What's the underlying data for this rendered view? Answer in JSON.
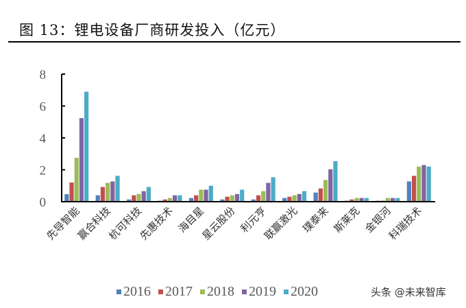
{
  "header": {
    "title": "图 13：锂电设备厂商研发投入（亿元）"
  },
  "watermark": "头条 @未来智库",
  "chart_data": {
    "type": "bar",
    "title": "锂电设备厂商研发投入（亿元）",
    "xlabel": "",
    "ylabel": "亿元",
    "ylim": [
      0,
      8
    ],
    "yticks": [
      0,
      2,
      4,
      6,
      8
    ],
    "grid": false,
    "legend_position": "bottom",
    "categories": [
      "先导智能",
      "赢合科技",
      "杭可科技",
      "先惠技术",
      "海目星",
      "星云股份",
      "利元亨",
      "联赢激光",
      "璞泰来",
      "斯莱克",
      "金银河",
      "科瑞技术"
    ],
    "series": [
      {
        "name": "2016",
        "color": "#4F81BD",
        "values": [
          0.47,
          0.4,
          0.14,
          0.06,
          0.23,
          0.14,
          0.14,
          0.23,
          0.57,
          0.06,
          0.06,
          1.27
        ]
      },
      {
        "name": "2017",
        "color": "#C0504D",
        "values": [
          1.2,
          0.92,
          0.4,
          0.14,
          0.4,
          0.31,
          0.4,
          0.31,
          0.83,
          0.14,
          0.06,
          1.62
        ]
      },
      {
        "name": "2018",
        "color": "#9BBB59",
        "values": [
          2.75,
          1.18,
          0.48,
          0.23,
          0.75,
          0.4,
          0.66,
          0.4,
          1.36,
          0.23,
          0.23,
          2.2
        ]
      },
      {
        "name": "2019",
        "color": "#8064A2",
        "values": [
          5.24,
          1.27,
          0.66,
          0.4,
          0.75,
          0.48,
          1.18,
          0.48,
          2.03,
          0.23,
          0.23,
          2.3
        ]
      },
      {
        "name": "2020",
        "color": "#4BACC6",
        "values": [
          6.9,
          1.62,
          0.92,
          0.4,
          1.0,
          0.75,
          1.53,
          0.66,
          2.54,
          0.23,
          0.23,
          2.2
        ]
      }
    ]
  }
}
